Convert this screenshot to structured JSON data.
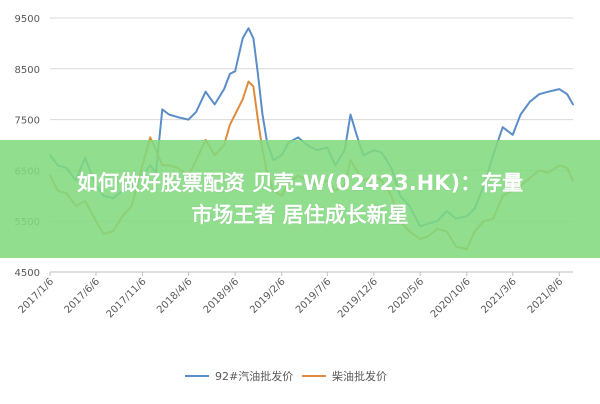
{
  "chart_data": {
    "type": "line",
    "title": "",
    "xlabel": "",
    "ylabel": "",
    "ylim": [
      4500,
      9500
    ],
    "yticks": [
      4500,
      5500,
      6500,
      7500,
      8500,
      9500
    ],
    "grid": "horizontal",
    "legend_position": "bottom",
    "x_tick_labels": [
      "2017/1/6",
      "2017/6/6",
      "2017/11/6",
      "2018/4/6",
      "2018/9/6",
      "2019/2/6",
      "2019/7/6",
      "2019/12/6",
      "2020/5/6",
      "2020/10/6",
      "2021/3/6",
      "2021/8/6"
    ],
    "x_start": "2017-01-06",
    "x_end": "2021-09-20",
    "series": [
      {
        "name": "92#汽油批发价",
        "color": "#5b8dc9",
        "points": [
          [
            "2017-01-06",
            6800
          ],
          [
            "2017-02-01",
            6600
          ],
          [
            "2017-03-01",
            6550
          ],
          [
            "2017-04-01",
            6300
          ],
          [
            "2017-05-01",
            6750
          ],
          [
            "2017-06-06",
            6200
          ],
          [
            "2017-07-01",
            6000
          ],
          [
            "2017-08-01",
            5950
          ],
          [
            "2017-09-01",
            6100
          ],
          [
            "2017-10-01",
            6200
          ],
          [
            "2017-11-06",
            6400
          ],
          [
            "2017-12-01",
            6600
          ],
          [
            "2017-12-20",
            6450
          ],
          [
            "2018-01-10",
            7700
          ],
          [
            "2018-02-01",
            7600
          ],
          [
            "2018-03-01",
            7550
          ],
          [
            "2018-04-06",
            7500
          ],
          [
            "2018-05-01",
            7650
          ],
          [
            "2018-06-01",
            8050
          ],
          [
            "2018-07-01",
            7800
          ],
          [
            "2018-08-01",
            8100
          ],
          [
            "2018-08-20",
            8400
          ],
          [
            "2018-09-06",
            8450
          ],
          [
            "2018-10-01",
            9100
          ],
          [
            "2018-10-20",
            9300
          ],
          [
            "2018-11-05",
            9100
          ],
          [
            "2018-11-20",
            8400
          ],
          [
            "2018-12-05",
            7600
          ],
          [
            "2018-12-20",
            7050
          ],
          [
            "2019-01-10",
            6700
          ],
          [
            "2019-02-06",
            6800
          ],
          [
            "2019-03-01",
            7050
          ],
          [
            "2019-04-01",
            7150
          ],
          [
            "2019-05-01",
            7000
          ],
          [
            "2019-06-01",
            6900
          ],
          [
            "2019-07-06",
            6950
          ],
          [
            "2019-08-01",
            6600
          ],
          [
            "2019-09-01",
            6900
          ],
          [
            "2019-09-20",
            7600
          ],
          [
            "2019-10-10",
            7200
          ],
          [
            "2019-11-01",
            6800
          ],
          [
            "2019-12-06",
            6900
          ],
          [
            "2020-01-01",
            6850
          ],
          [
            "2020-02-01",
            6550
          ],
          [
            "2020-03-01",
            6000
          ],
          [
            "2020-04-01",
            5800
          ],
          [
            "2020-05-06",
            5400
          ],
          [
            "2020-06-01",
            5450
          ],
          [
            "2020-07-01",
            5500
          ],
          [
            "2020-08-01",
            5700
          ],
          [
            "2020-09-01",
            5550
          ],
          [
            "2020-10-06",
            5600
          ],
          [
            "2020-11-01",
            5750
          ],
          [
            "2020-12-01",
            6200
          ],
          [
            "2021-01-01",
            6800
          ],
          [
            "2021-02-01",
            7350
          ],
          [
            "2021-03-06",
            7200
          ],
          [
            "2021-04-01",
            7600
          ],
          [
            "2021-05-01",
            7850
          ],
          [
            "2021-06-01",
            8000
          ],
          [
            "2021-07-01",
            8050
          ],
          [
            "2021-08-06",
            8100
          ],
          [
            "2021-09-01",
            8000
          ],
          [
            "2021-09-20",
            7800
          ]
        ]
      },
      {
        "name": "柴油批发价",
        "color": "#e08b3b",
        "points": [
          [
            "2017-01-06",
            6400
          ],
          [
            "2017-02-01",
            6100
          ],
          [
            "2017-03-01",
            6050
          ],
          [
            "2017-04-01",
            5800
          ],
          [
            "2017-05-01",
            5900
          ],
          [
            "2017-06-06",
            5500
          ],
          [
            "2017-07-01",
            5250
          ],
          [
            "2017-08-01",
            5300
          ],
          [
            "2017-09-01",
            5600
          ],
          [
            "2017-10-01",
            5800
          ],
          [
            "2017-11-06",
            6600
          ],
          [
            "2017-12-01",
            7150
          ],
          [
            "2017-12-20",
            6900
          ],
          [
            "2018-01-10",
            6600
          ],
          [
            "2018-02-01",
            6600
          ],
          [
            "2018-03-01",
            6550
          ],
          [
            "2018-04-06",
            6400
          ],
          [
            "2018-05-01",
            6700
          ],
          [
            "2018-06-01",
            7100
          ],
          [
            "2018-07-01",
            6800
          ],
          [
            "2018-08-01",
            7000
          ],
          [
            "2018-08-20",
            7400
          ],
          [
            "2018-09-06",
            7600
          ],
          [
            "2018-10-01",
            7900
          ],
          [
            "2018-10-20",
            8250
          ],
          [
            "2018-11-05",
            8150
          ],
          [
            "2018-11-20",
            7500
          ],
          [
            "2018-12-05",
            6900
          ],
          [
            "2018-12-20",
            6450
          ],
          [
            "2019-01-10",
            6100
          ],
          [
            "2019-02-06",
            6000
          ],
          [
            "2019-03-01",
            6250
          ],
          [
            "2019-04-01",
            6400
          ],
          [
            "2019-05-01",
            6300
          ],
          [
            "2019-06-01",
            6200
          ],
          [
            "2019-07-06",
            6300
          ],
          [
            "2019-08-01",
            6100
          ],
          [
            "2019-09-01",
            6200
          ],
          [
            "2019-09-20",
            6700
          ],
          [
            "2019-10-10",
            6500
          ],
          [
            "2019-11-01",
            6300
          ],
          [
            "2019-12-06",
            6400
          ],
          [
            "2020-01-01",
            6300
          ],
          [
            "2020-02-01",
            6000
          ],
          [
            "2020-03-01",
            5500
          ],
          [
            "2020-04-01",
            5300
          ],
          [
            "2020-05-06",
            5150
          ],
          [
            "2020-06-01",
            5200
          ],
          [
            "2020-07-01",
            5350
          ],
          [
            "2020-08-01",
            5300
          ],
          [
            "2020-09-01",
            5000
          ],
          [
            "2020-10-06",
            4950
          ],
          [
            "2020-11-01",
            5300
          ],
          [
            "2020-12-01",
            5500
          ],
          [
            "2021-01-01",
            5550
          ],
          [
            "2021-02-01",
            6000
          ],
          [
            "2021-03-06",
            6100
          ],
          [
            "2021-04-01",
            6200
          ],
          [
            "2021-05-01",
            6350
          ],
          [
            "2021-06-01",
            6500
          ],
          [
            "2021-07-01",
            6450
          ],
          [
            "2021-08-06",
            6600
          ],
          [
            "2021-09-01",
            6550
          ],
          [
            "2021-09-20",
            6300
          ]
        ]
      }
    ]
  },
  "overlay": {
    "line1": "如何做好股票配资 贝壳-W(02423.HK)：存量",
    "line2": "市场王者 居住成长新星",
    "background": "#81da7e"
  }
}
